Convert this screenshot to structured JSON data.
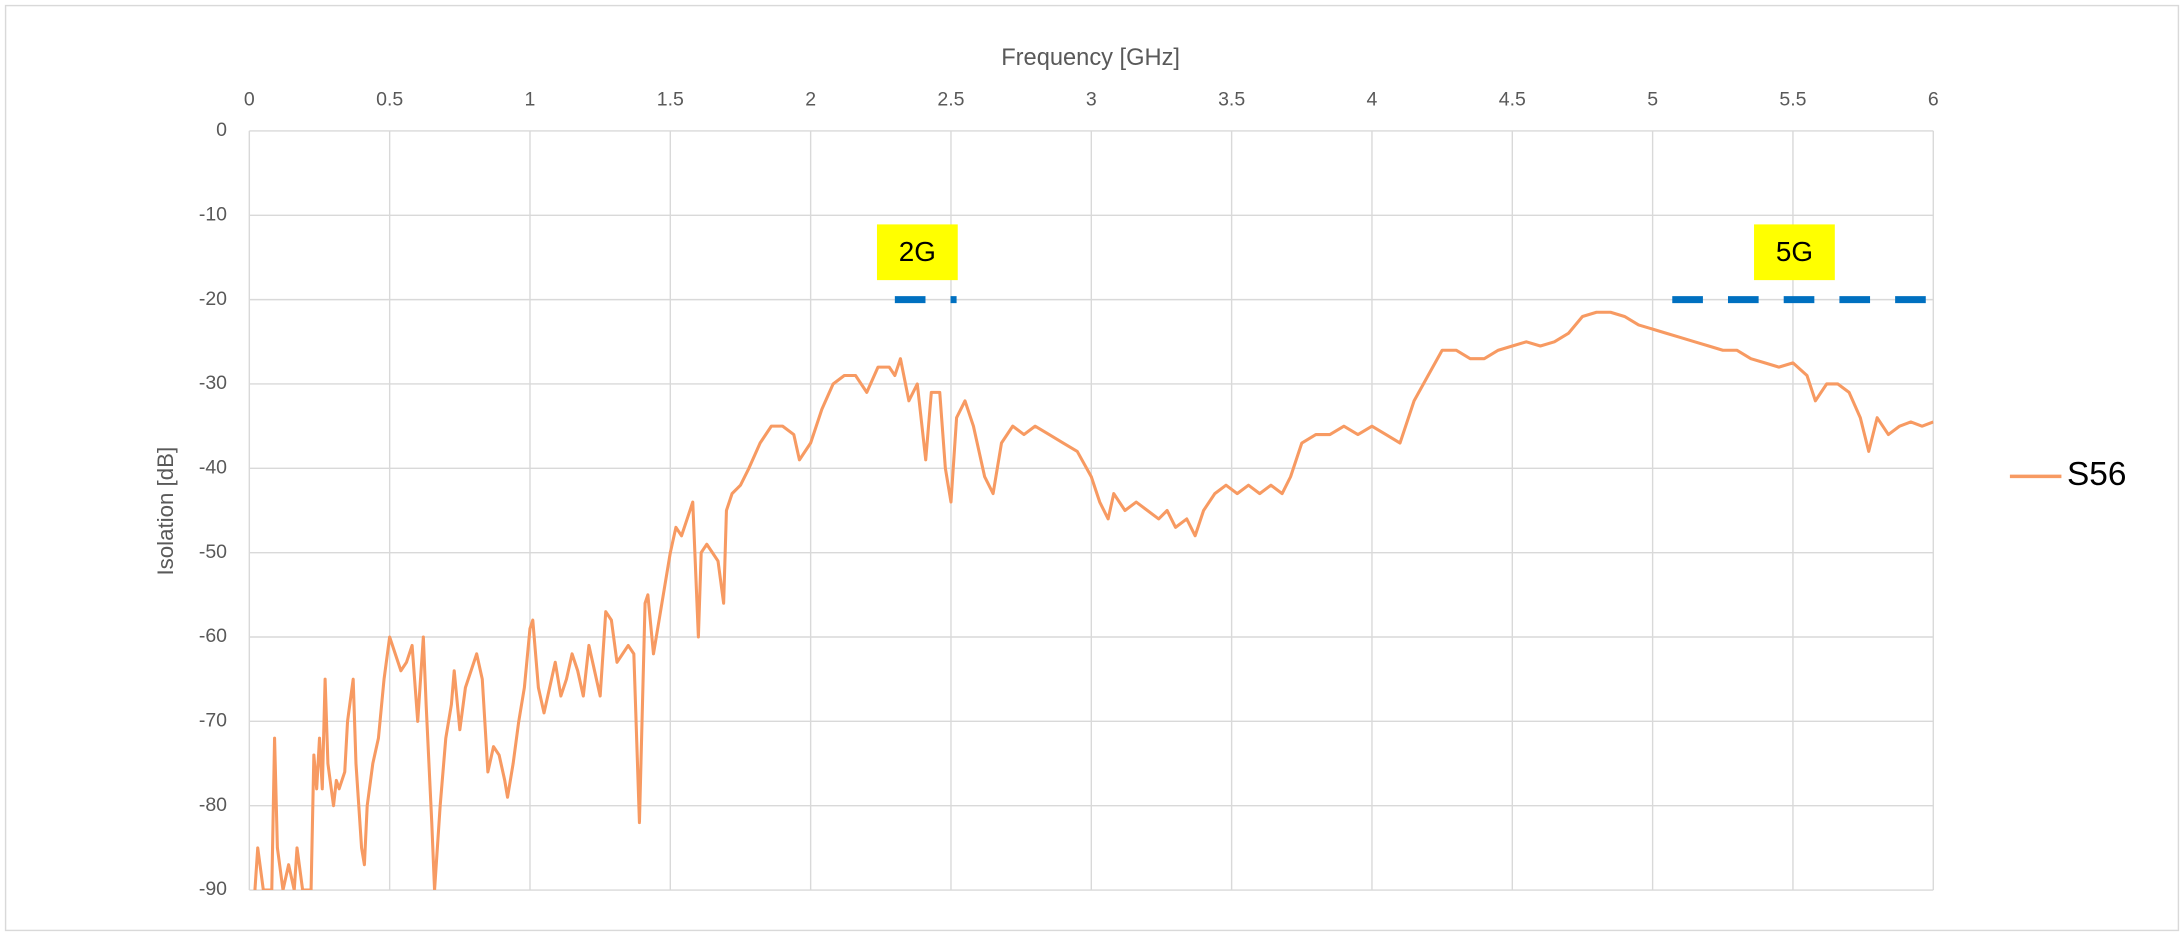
{
  "chart_data": {
    "type": "line",
    "xlabel": "Frequency [GHz]",
    "ylabel": "Isolation [dB]",
    "xlim": [
      0,
      6
    ],
    "xticks": [
      0,
      0.5,
      1,
      1.5,
      2,
      2.5,
      3,
      3.5,
      4,
      4.5,
      5,
      5.5,
      6
    ],
    "ylim": [
      -90,
      0
    ],
    "yticks": [
      0,
      -10,
      -20,
      -30,
      -40,
      -50,
      -60,
      -70,
      -80,
      -90
    ],
    "grid": true,
    "legend": "right",
    "x_axis_position": "top",
    "x": [
      0.02,
      0.03,
      0.05,
      0.08,
      0.09,
      0.1,
      0.12,
      0.14,
      0.16,
      0.17,
      0.19,
      0.22,
      0.23,
      0.24,
      0.25,
      0.26,
      0.27,
      0.28,
      0.3,
      0.31,
      0.32,
      0.34,
      0.35,
      0.37,
      0.38,
      0.4,
      0.41,
      0.42,
      0.44,
      0.46,
      0.48,
      0.5,
      0.52,
      0.54,
      0.56,
      0.58,
      0.6,
      0.62,
      0.63,
      0.65,
      0.66,
      0.68,
      0.7,
      0.72,
      0.73,
      0.75,
      0.77,
      0.79,
      0.81,
      0.83,
      0.85,
      0.87,
      0.89,
      0.91,
      0.92,
      0.94,
      0.96,
      0.98,
      1.0,
      1.01,
      1.03,
      1.05,
      1.07,
      1.09,
      1.11,
      1.13,
      1.15,
      1.17,
      1.19,
      1.21,
      1.23,
      1.25,
      1.27,
      1.29,
      1.31,
      1.33,
      1.35,
      1.37,
      1.39,
      1.41,
      1.42,
      1.44,
      1.46,
      1.48,
      1.5,
      1.52,
      1.54,
      1.56,
      1.58,
      1.6,
      1.61,
      1.63,
      1.65,
      1.67,
      1.69,
      1.7,
      1.72,
      1.75,
      1.78,
      1.82,
      1.86,
      1.9,
      1.94,
      1.96,
      2.0,
      2.04,
      2.08,
      2.12,
      2.16,
      2.2,
      2.24,
      2.28,
      2.3,
      2.32,
      2.35,
      2.38,
      2.41,
      2.43,
      2.46,
      2.48,
      2.5,
      2.52,
      2.55,
      2.58,
      2.62,
      2.65,
      2.68,
      2.72,
      2.76,
      2.8,
      2.85,
      2.9,
      2.95,
      3.0,
      3.03,
      3.06,
      3.08,
      3.12,
      3.16,
      3.2,
      3.24,
      3.27,
      3.3,
      3.34,
      3.37,
      3.4,
      3.44,
      3.48,
      3.52,
      3.56,
      3.6,
      3.64,
      3.68,
      3.71,
      3.75,
      3.8,
      3.85,
      3.9,
      3.95,
      4.0,
      4.05,
      4.1,
      4.15,
      4.2,
      4.25,
      4.3,
      4.35,
      4.4,
      4.45,
      4.5,
      4.55,
      4.6,
      4.65,
      4.7,
      4.75,
      4.8,
      4.85,
      4.9,
      4.95,
      5.0,
      5.05,
      5.1,
      5.15,
      5.2,
      5.25,
      5.3,
      5.35,
      5.4,
      5.45,
      5.5,
      5.55,
      5.58,
      5.62,
      5.66,
      5.7,
      5.74,
      5.77,
      5.8,
      5.84,
      5.88,
      5.92,
      5.96,
      6.0
    ],
    "series": [
      {
        "name": "S56",
        "color": "#f79a62",
        "values": [
          -90,
          -85,
          -90,
          -90,
          -72,
          -85,
          -90,
          -87,
          -90,
          -85,
          -90,
          -90,
          -74,
          -78,
          -72,
          -78,
          -65,
          -75,
          -80,
          -77,
          -78,
          -76,
          -70,
          -65,
          -75,
          -85,
          -87,
          -80,
          -75,
          -72,
          -65,
          -60,
          -62,
          -64,
          -63,
          -61,
          -70,
          -60,
          -68,
          -82,
          -90,
          -80,
          -72,
          -68,
          -64,
          -71,
          -66,
          -64,
          -62,
          -65,
          -76,
          -73,
          -74,
          -77,
          -79,
          -75,
          -70,
          -66,
          -59,
          -58,
          -66,
          -69,
          -66,
          -63,
          -67,
          -65,
          -62,
          -64,
          -67,
          -61,
          -64,
          -67,
          -57,
          -58,
          -63,
          -62,
          -61,
          -62,
          -82,
          -56,
          -55,
          -62,
          -58,
          -54,
          -50,
          -47,
          -48,
          -46,
          -44,
          -60,
          -50,
          -49,
          -50,
          -51,
          -56,
          -45,
          -43,
          -42,
          -40,
          -37,
          -35,
          -35,
          -36,
          -39,
          -37,
          -33,
          -30,
          -29,
          -29,
          -31,
          -28,
          -28,
          -29,
          -27,
          -32,
          -30,
          -39,
          -31,
          -31,
          -40,
          -44,
          -34,
          -32,
          -35,
          -41,
          -43,
          -37,
          -35,
          -36,
          -35,
          -36,
          -37,
          -38,
          -41,
          -44,
          -46,
          -43,
          -45,
          -44,
          -45,
          -46,
          -45,
          -47,
          -46,
          -48,
          -45,
          -43,
          -42,
          -43,
          -42,
          -43,
          -42,
          -43,
          -41,
          -37,
          -36,
          -36,
          -35,
          -36,
          -35,
          -36,
          -37,
          -32,
          -29,
          -26,
          -26,
          -27,
          -27,
          -26,
          -25.5,
          -25,
          -25.5,
          -25,
          -24,
          -22,
          -21.5,
          -21.5,
          -22,
          -23,
          -23.5,
          -24,
          -24.5,
          -25,
          -25.5,
          -26,
          -26,
          -27,
          -27.5,
          -28,
          -27.5,
          -29,
          -32,
          -30,
          -30,
          -31,
          -34,
          -38,
          -34,
          -36,
          -35,
          -34.5,
          -35,
          -34.5
        ]
      }
    ],
    "annotations": [
      {
        "text": "2G",
        "x": [
          2.3,
          2.52
        ],
        "y": -20,
        "color": "#0070c0",
        "background": "#ffff00"
      },
      {
        "text": "5G",
        "x": [
          5.07,
          6.0
        ],
        "y": -20,
        "color": "#0070c0",
        "background": "#ffff00"
      }
    ]
  }
}
